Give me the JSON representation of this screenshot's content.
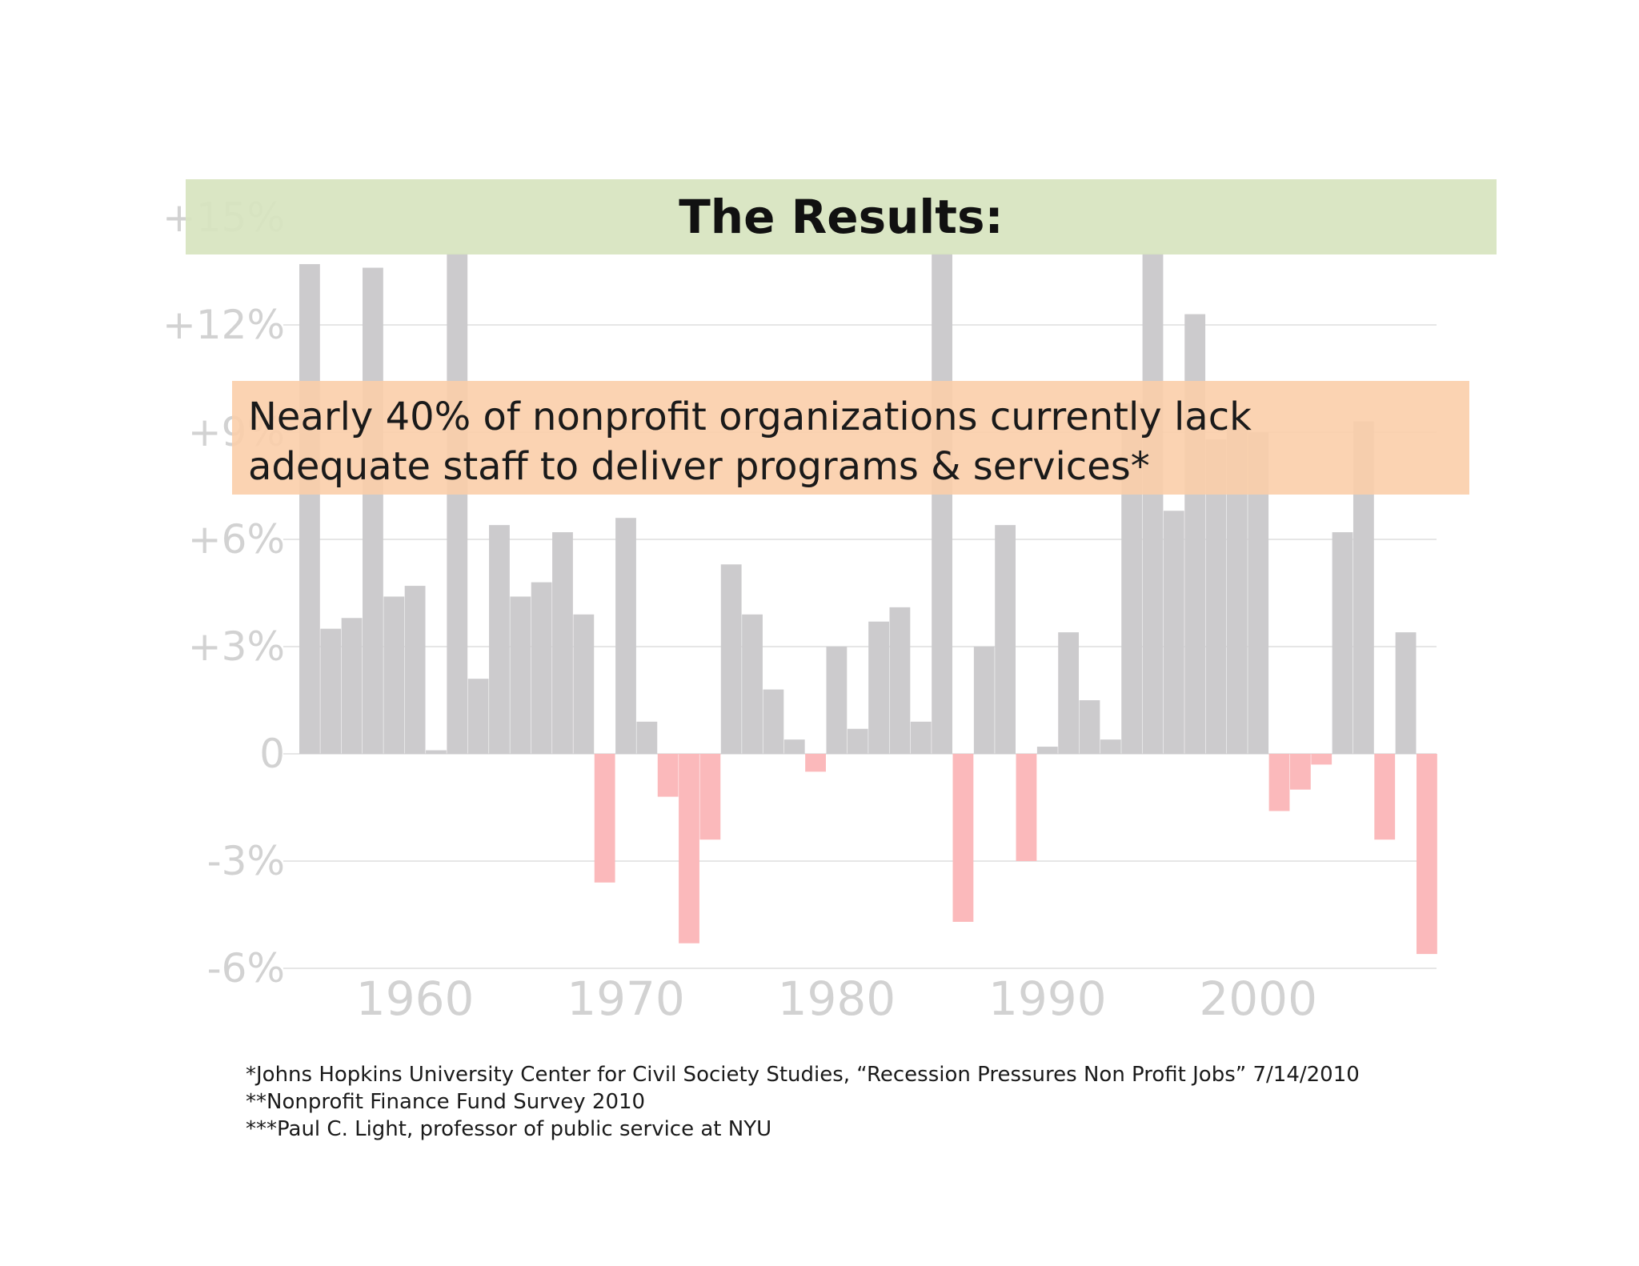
{
  "slide": {
    "title": "The Results:",
    "callout": {
      "line1": "Nearly 40% of nonprofit organizations currently lack",
      "line2": "adequate staff to deliver programs & services*"
    },
    "footnotes": [
      "*Johns Hopkins University Center for Civil Society Studies, “Recession Pressures Non Profit Jobs”  7/14/2010",
      "**Nonprofit Finance Fund Survey 2010",
      "***Paul C. Light, professor of public service at NYU"
    ]
  },
  "colors": {
    "positive_bar": "#cccbcd",
    "negative_bar": "#fbb9bb",
    "title_band": "#d7e4bf",
    "callout_band": "#fbceaa",
    "gridline": "#e6e6e6",
    "tick_text": "#d2d2d2"
  },
  "chart_data": {
    "type": "bar",
    "title": "",
    "xlabel": "",
    "ylabel": "",
    "ylim": [
      -6,
      15
    ],
    "yticks": [
      15,
      12,
      9,
      6,
      3,
      0,
      -3,
      -6
    ],
    "ytick_labels": [
      "+15%",
      "+12%",
      "+9%",
      "+6%",
      "+3%",
      "0",
      "-3%",
      "-6%"
    ],
    "xticks": [
      1960,
      1970,
      1980,
      1990,
      2000
    ],
    "xtick_labels": [
      "1960",
      "1970",
      "1980",
      "1990",
      "2000"
    ],
    "gridlines": true,
    "x": [
      1955,
      1956,
      1957,
      1958,
      1959,
      1960,
      1961,
      1962,
      1963,
      1964,
      1965,
      1966,
      1967,
      1968,
      1969,
      1970,
      1971,
      1972,
      1973,
      1974,
      1975,
      1976,
      1977,
      1978,
      1979,
      1980,
      1981,
      1982,
      1983,
      1984,
      1985,
      1986,
      1987,
      1988,
      1989,
      1990,
      1991,
      1992,
      1993,
      1994,
      1995,
      1996,
      1997,
      1998,
      1999,
      2000,
      2001,
      2002,
      2003,
      2004,
      2005,
      2006,
      2007,
      2008
    ],
    "values": [
      13.7,
      3.5,
      3.8,
      13.6,
      4.4,
      4.7,
      0.1,
      14.0,
      2.1,
      6.4,
      4.4,
      4.8,
      6.2,
      3.9,
      -3.6,
      6.6,
      0.9,
      -1.2,
      -5.3,
      -2.4,
      5.3,
      3.9,
      1.8,
      0.4,
      -0.5,
      3.0,
      0.7,
      3.7,
      4.1,
      0.9,
      14.0,
      -4.7,
      3.0,
      6.4,
      -3.0,
      0.2,
      3.4,
      1.5,
      0.4,
      9.8,
      14.0,
      6.8,
      12.3,
      8.8,
      9.2,
      9.0,
      -1.6,
      -1.0,
      -0.3,
      6.2,
      9.3,
      -2.4,
      3.4,
      -5.6
    ]
  }
}
